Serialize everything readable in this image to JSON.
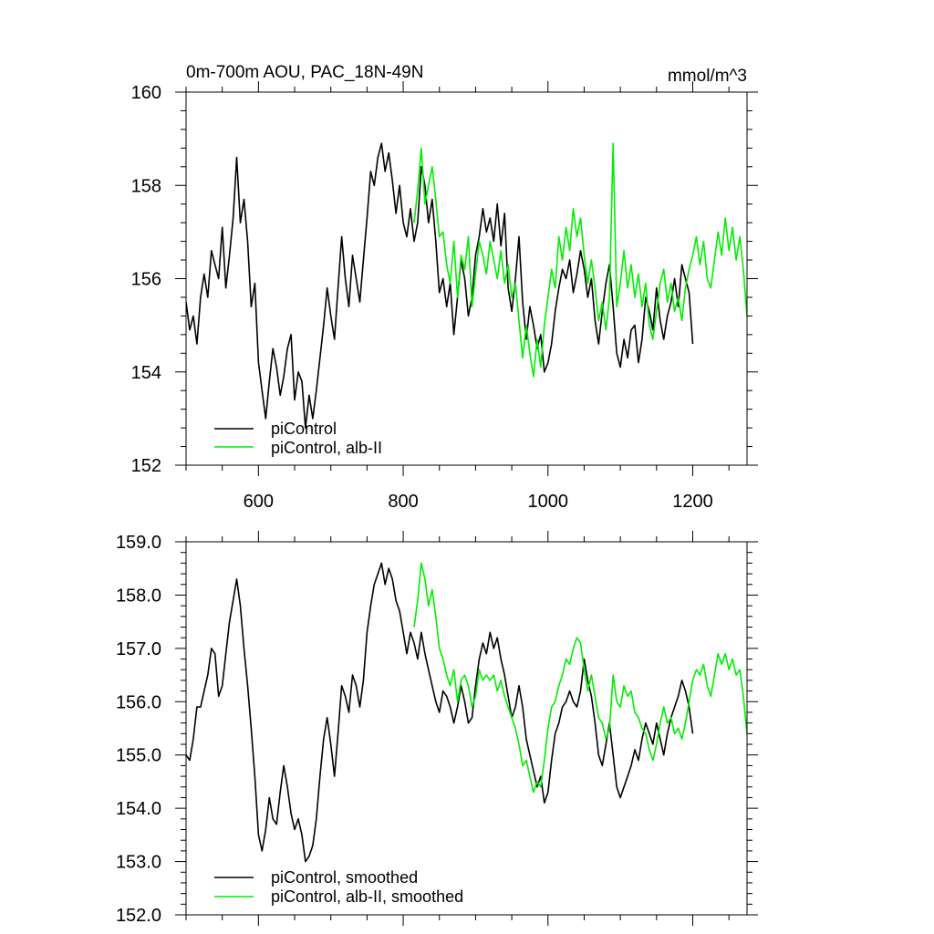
{
  "chart_data": [
    {
      "type": "line",
      "title": "0m-700m AOU, PAC_18N-49N",
      "units_label": "mmol/m^3",
      "xlabel": "",
      "ylabel": "",
      "xlim": [
        500,
        1275
      ],
      "ylim": [
        152,
        160
      ],
      "x_ticks": [
        600,
        800,
        1000,
        1200
      ],
      "x_tick_labels": [
        "600",
        "800",
        "1000",
        "1200"
      ],
      "y_ticks": [
        152,
        154,
        156,
        158,
        160
      ],
      "y_tick_labels": [
        "152",
        "154",
        "156",
        "158",
        "160"
      ],
      "show_x_tick_labels": true,
      "grid": false,
      "legend_position": "bottom-left",
      "series": [
        {
          "name": "piControl",
          "color": "#000000",
          "x": [
            500,
            505,
            510,
            515,
            520,
            525,
            530,
            535,
            540,
            545,
            550,
            555,
            560,
            565,
            570,
            575,
            580,
            585,
            590,
            595,
            600,
            605,
            610,
            615,
            620,
            625,
            630,
            635,
            640,
            645,
            650,
            655,
            660,
            665,
            670,
            675,
            680,
            685,
            690,
            695,
            700,
            705,
            710,
            715,
            720,
            725,
            730,
            735,
            740,
            745,
            750,
            755,
            760,
            765,
            770,
            775,
            780,
            785,
            790,
            795,
            800,
            805,
            810,
            815,
            820,
            825,
            830,
            835,
            840,
            845,
            850,
            855,
            860,
            865,
            870,
            875,
            880,
            885,
            890,
            895,
            900,
            905,
            910,
            915,
            920,
            925,
            930,
            935,
            940,
            945,
            950,
            955,
            960,
            965,
            970,
            975,
            980,
            985,
            990,
            995,
            1000,
            1005,
            1010,
            1015,
            1020,
            1025,
            1030,
            1035,
            1040,
            1045,
            1050,
            1055,
            1060,
            1065,
            1070,
            1075,
            1080,
            1085,
            1090,
            1095,
            1100,
            1105,
            1110,
            1115,
            1120,
            1125,
            1130,
            1135,
            1140,
            1145,
            1150,
            1155,
            1160,
            1165,
            1170,
            1175,
            1180,
            1185,
            1190,
            1195,
            1200
          ],
          "values": [
            155.5,
            154.9,
            155.2,
            154.6,
            155.6,
            156.1,
            155.6,
            156.6,
            156.3,
            156.0,
            157.1,
            155.8,
            156.5,
            157.3,
            158.6,
            157.2,
            157.7,
            156.8,
            155.4,
            155.9,
            154.2,
            153.6,
            153.0,
            153.8,
            154.5,
            154.1,
            153.5,
            153.9,
            154.5,
            154.8,
            153.4,
            154.0,
            153.8,
            152.8,
            153.5,
            153.0,
            153.6,
            154.3,
            155.0,
            155.8,
            155.2,
            154.7,
            155.8,
            156.9,
            156.0,
            155.4,
            156.5,
            156.0,
            155.5,
            156.4,
            157.3,
            158.3,
            158.0,
            158.6,
            158.9,
            158.3,
            158.7,
            158.1,
            157.4,
            158.0,
            157.2,
            156.9,
            157.5,
            156.8,
            157.2,
            158.4,
            158.0,
            157.2,
            157.7,
            156.8,
            155.7,
            156.0,
            155.4,
            155.9,
            154.8,
            155.6,
            156.4,
            156.0,
            155.2,
            155.6,
            156.5,
            156.9,
            157.5,
            157.0,
            157.3,
            156.8,
            157.6,
            156.7,
            157.4,
            155.8,
            155.3,
            156.0,
            156.9,
            155.5,
            154.7,
            155.4,
            155.0,
            154.5,
            154.8,
            154.0,
            154.2,
            154.6,
            155.3,
            155.8,
            156.2,
            156.0,
            156.4,
            155.7,
            156.1,
            156.6,
            156.2,
            155.6,
            156.0,
            155.1,
            154.6,
            155.3,
            155.9,
            156.3,
            155.4,
            154.4,
            154.1,
            154.7,
            154.3,
            154.9,
            155.0,
            154.2,
            154.7,
            155.6,
            155.3,
            154.9,
            155.8,
            155.1,
            154.7,
            155.2,
            155.5,
            156.0,
            155.4,
            156.3,
            156.0,
            155.7,
            154.6
          ]
        },
        {
          "name": "piControl, alb-II",
          "color": "#00ee00",
          "x": [
            815,
            820,
            825,
            830,
            835,
            840,
            845,
            850,
            855,
            860,
            865,
            870,
            875,
            880,
            885,
            890,
            895,
            900,
            905,
            910,
            915,
            920,
            925,
            930,
            935,
            940,
            945,
            950,
            955,
            960,
            965,
            970,
            975,
            980,
            985,
            990,
            995,
            1000,
            1005,
            1010,
            1015,
            1020,
            1025,
            1030,
            1035,
            1040,
            1045,
            1050,
            1055,
            1060,
            1065,
            1070,
            1075,
            1080,
            1085,
            1090,
            1095,
            1100,
            1105,
            1110,
            1115,
            1120,
            1125,
            1130,
            1135,
            1140,
            1145,
            1150,
            1155,
            1160,
            1165,
            1170,
            1175,
            1180,
            1185,
            1190,
            1195,
            1200,
            1205,
            1210,
            1215,
            1220,
            1225,
            1230,
            1235,
            1240,
            1245,
            1250,
            1255,
            1260,
            1265,
            1270,
            1275
          ],
          "values": [
            157.2,
            157.9,
            158.8,
            157.6,
            158.0,
            158.4,
            157.7,
            156.9,
            157.0,
            156.3,
            155.9,
            156.8,
            155.6,
            156.5,
            156.2,
            156.9,
            155.4,
            156.1,
            156.8,
            156.5,
            156.1,
            156.8,
            156.4,
            156.0,
            156.6,
            155.9,
            156.3,
            155.6,
            155.9,
            155.1,
            154.3,
            155.0,
            154.4,
            153.9,
            154.7,
            154.1,
            155.0,
            155.6,
            156.2,
            155.8,
            156.9,
            156.4,
            157.1,
            156.6,
            157.5,
            156.9,
            157.3,
            156.5,
            155.9,
            156.4,
            155.8,
            155.1,
            155.5,
            154.9,
            155.6,
            158.9,
            155.4,
            155.9,
            156.6,
            155.8,
            156.3,
            155.6,
            156.1,
            155.4,
            155.9,
            155.0,
            154.7,
            155.3,
            155.9,
            156.2,
            155.5,
            155.9,
            155.3,
            155.6,
            155.1,
            155.8,
            156.2,
            156.5,
            156.9,
            156.3,
            156.8,
            156.0,
            155.8,
            156.4,
            157.0,
            156.5,
            157.3,
            156.6,
            157.1,
            156.4,
            156.9,
            156.2,
            155.2
          ]
        }
      ]
    },
    {
      "type": "line",
      "title": "",
      "xlabel": "",
      "ylabel": "",
      "xlim": [
        500,
        1275
      ],
      "ylim": [
        152,
        159
      ],
      "x_ticks": [
        600,
        800,
        1000,
        1200
      ],
      "x_tick_labels": [],
      "y_ticks": [
        152,
        153,
        154,
        155,
        156,
        157,
        158,
        159
      ],
      "y_tick_labels": [
        "152.0",
        "153.0",
        "154.0",
        "155.0",
        "156.0",
        "157.0",
        "158.0",
        "159.0"
      ],
      "show_x_tick_labels": false,
      "grid": false,
      "legend_position": "bottom-left",
      "series": [
        {
          "name": "piControl, smoothed",
          "color": "#000000",
          "x": [
            500,
            505,
            510,
            515,
            520,
            525,
            530,
            535,
            540,
            545,
            550,
            555,
            560,
            565,
            570,
            575,
            580,
            585,
            590,
            595,
            600,
            605,
            610,
            615,
            620,
            625,
            630,
            635,
            640,
            645,
            650,
            655,
            660,
            665,
            670,
            675,
            680,
            685,
            690,
            695,
            700,
            705,
            710,
            715,
            720,
            725,
            730,
            735,
            740,
            745,
            750,
            755,
            760,
            765,
            770,
            775,
            780,
            785,
            790,
            795,
            800,
            805,
            810,
            815,
            820,
            825,
            830,
            835,
            840,
            845,
            850,
            855,
            860,
            865,
            870,
            875,
            880,
            885,
            890,
            895,
            900,
            905,
            910,
            915,
            920,
            925,
            930,
            935,
            940,
            945,
            950,
            955,
            960,
            965,
            970,
            975,
            980,
            985,
            990,
            995,
            1000,
            1005,
            1010,
            1015,
            1020,
            1025,
            1030,
            1035,
            1040,
            1045,
            1050,
            1055,
            1060,
            1065,
            1070,
            1075,
            1080,
            1085,
            1090,
            1095,
            1100,
            1105,
            1110,
            1115,
            1120,
            1125,
            1130,
            1135,
            1140,
            1145,
            1150,
            1155,
            1160,
            1165,
            1170,
            1175,
            1180,
            1185,
            1190,
            1195,
            1200
          ],
          "values": [
            155.0,
            154.9,
            155.3,
            155.9,
            155.9,
            156.2,
            156.5,
            157.0,
            156.9,
            156.1,
            156.3,
            156.9,
            157.5,
            157.9,
            158.3,
            157.8,
            157.0,
            156.3,
            155.5,
            154.6,
            153.5,
            153.2,
            153.6,
            154.2,
            153.8,
            153.7,
            154.3,
            154.8,
            154.4,
            153.9,
            153.6,
            153.8,
            153.5,
            153.0,
            153.1,
            153.3,
            153.8,
            154.6,
            155.3,
            155.7,
            155.2,
            154.6,
            155.4,
            156.3,
            156.1,
            155.8,
            156.5,
            156.3,
            155.9,
            156.4,
            157.3,
            157.8,
            158.2,
            158.4,
            158.6,
            158.2,
            158.5,
            158.3,
            157.9,
            157.7,
            157.3,
            156.9,
            157.3,
            157.1,
            156.8,
            157.3,
            156.9,
            156.6,
            156.3,
            156.0,
            155.8,
            156.2,
            156.1,
            155.9,
            155.6,
            155.9,
            156.3,
            156.0,
            155.6,
            155.7,
            156.3,
            156.8,
            157.1,
            156.9,
            157.3,
            157.0,
            157.2,
            156.8,
            156.5,
            156.1,
            155.7,
            155.9,
            156.3,
            155.9,
            155.3,
            155.0,
            154.7,
            154.4,
            154.6,
            154.1,
            154.3,
            154.9,
            155.4,
            155.6,
            155.9,
            156.0,
            156.2,
            156.0,
            155.9,
            156.2,
            156.8,
            156.4,
            156.1,
            155.6,
            155.0,
            154.8,
            155.2,
            155.6,
            155.0,
            154.4,
            154.2,
            154.4,
            154.6,
            154.8,
            155.1,
            154.9,
            155.3,
            155.6,
            155.4,
            155.2,
            155.6,
            155.3,
            155.0,
            155.4,
            155.7,
            155.9,
            156.1,
            156.4,
            156.2,
            155.9,
            155.4
          ]
        },
        {
          "name": "piControl, alb-II, smoothed",
          "color": "#00ee00",
          "x": [
            815,
            820,
            825,
            830,
            835,
            840,
            845,
            850,
            855,
            860,
            865,
            870,
            875,
            880,
            885,
            890,
            895,
            900,
            905,
            910,
            915,
            920,
            925,
            930,
            935,
            940,
            945,
            950,
            955,
            960,
            965,
            970,
            975,
            980,
            985,
            990,
            995,
            1000,
            1005,
            1010,
            1015,
            1020,
            1025,
            1030,
            1035,
            1040,
            1045,
            1050,
            1055,
            1060,
            1065,
            1070,
            1075,
            1080,
            1085,
            1090,
            1095,
            1100,
            1105,
            1110,
            1115,
            1120,
            1125,
            1130,
            1135,
            1140,
            1145,
            1150,
            1155,
            1160,
            1165,
            1170,
            1175,
            1180,
            1185,
            1190,
            1195,
            1200,
            1205,
            1210,
            1215,
            1220,
            1225,
            1230,
            1235,
            1240,
            1245,
            1250,
            1255,
            1260,
            1265,
            1270,
            1275
          ],
          "values": [
            157.4,
            157.9,
            158.6,
            158.3,
            157.8,
            158.1,
            157.6,
            157.0,
            156.8,
            156.5,
            156.3,
            156.6,
            156.0,
            156.4,
            156.5,
            156.3,
            155.9,
            156.1,
            156.6,
            156.4,
            156.5,
            156.4,
            156.5,
            156.2,
            156.4,
            156.1,
            155.9,
            155.7,
            155.5,
            155.2,
            154.8,
            154.9,
            154.6,
            154.3,
            154.5,
            154.4,
            154.9,
            155.5,
            155.9,
            156.0,
            156.3,
            156.5,
            156.8,
            156.7,
            157.0,
            157.2,
            157.1,
            156.6,
            156.2,
            156.5,
            156.1,
            155.7,
            155.6,
            155.3,
            155.5,
            156.5,
            156.0,
            155.9,
            156.3,
            156.1,
            156.2,
            155.8,
            155.7,
            155.5,
            155.4,
            155.1,
            154.9,
            155.2,
            155.6,
            155.9,
            155.6,
            155.7,
            155.4,
            155.5,
            155.3,
            155.6,
            156.0,
            156.4,
            156.6,
            156.5,
            156.7,
            156.3,
            156.1,
            156.5,
            156.9,
            156.7,
            156.9,
            156.6,
            156.8,
            156.5,
            156.6,
            156.1,
            155.4
          ]
        }
      ]
    }
  ]
}
